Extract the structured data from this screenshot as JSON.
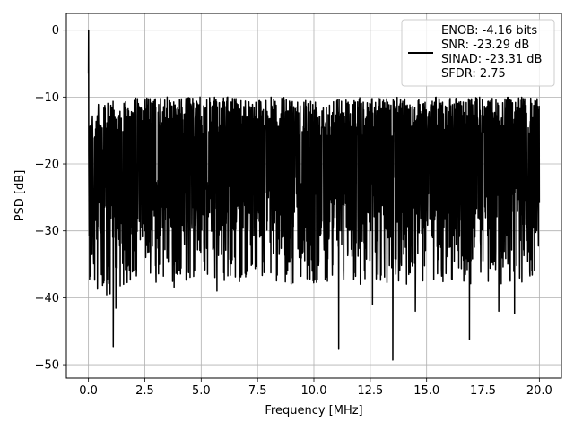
{
  "chart_data": {
    "type": "line",
    "title": "",
    "xlabel": "Frequency [MHz]",
    "ylabel": "PSD [dB]",
    "xlim": [
      -0.98,
      20.98
    ],
    "ylim": [
      -52.0,
      2.5
    ],
    "xticks": [
      0.0,
      2.5,
      5.0,
      7.5,
      10.0,
      12.5,
      15.0,
      17.5,
      20.0
    ],
    "xtick_labels": [
      "0.0",
      "2.5",
      "5.0",
      "7.5",
      "10.0",
      "12.5",
      "15.0",
      "17.5",
      "20.0"
    ],
    "yticks": [
      0,
      -10,
      -20,
      -30,
      -40,
      -50
    ],
    "ytick_labels": [
      "0",
      "−10",
      "−20",
      "−30",
      "−40",
      "−50"
    ],
    "grid": true,
    "legend_position": "top-right",
    "series": [
      {
        "color": "#000000",
        "x_range": [
          0.0,
          20.0
        ],
        "envelope": {
          "typical_max": -10.0,
          "typical_min": -30.0,
          "peak_x": 0.0,
          "peak_y": 0.0,
          "deep_nulls": [
            {
              "x": 1.1,
              "y": -47.3
            },
            {
              "x": 11.1,
              "y": -47.7
            },
            {
              "x": 13.5,
              "y": -49.3
            },
            {
              "x": 16.9,
              "y": -46.2
            },
            {
              "x": 0.4,
              "y": -38.7
            },
            {
              "x": 3.8,
              "y": -38.4
            },
            {
              "x": 5.7,
              "y": -39.0
            },
            {
              "x": 12.6,
              "y": -41.0
            },
            {
              "x": 14.5,
              "y": -42.0
            },
            {
              "x": 18.2,
              "y": -42.0
            },
            {
              "x": 18.9,
              "y": -42.4
            }
          ]
        }
      }
    ],
    "legend": [
      "ENOB: -4.16 bits",
      "SNR: -23.29 dB",
      "SINAD: -23.31 dB",
      "SFDR: 2.75"
    ]
  }
}
